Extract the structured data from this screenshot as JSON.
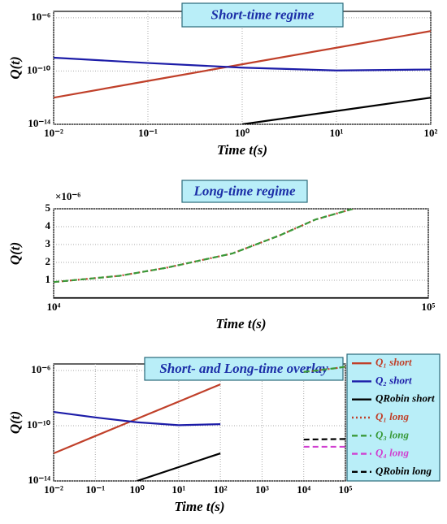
{
  "chart_data": [
    {
      "type": "line",
      "title": "Short-time regime",
      "xlabel": "Time t(s)",
      "ylabel": "Q(t)",
      "xscale": "log",
      "yscale": "log",
      "grid": true,
      "xlim": [
        0.01,
        100
      ],
      "ylim": [
        1e-14,
        3e-06
      ],
      "xticks": [
        {
          "value": 0.01,
          "label": "10⁻²"
        },
        {
          "value": 0.1,
          "label": "10⁻¹"
        },
        {
          "value": 1,
          "label": "10⁰"
        },
        {
          "value": 10,
          "label": "10¹"
        },
        {
          "value": 100,
          "label": "10²"
        }
      ],
      "yticks": [
        {
          "value": 1e-14,
          "label": "10⁻¹⁴"
        },
        {
          "value": 1e-10,
          "label": "10⁻¹⁰"
        },
        {
          "value": 1e-06,
          "label": "10⁻⁶"
        }
      ],
      "series": [
        {
          "color": "#c0402a",
          "dash": "solid",
          "x": [
            0.01,
            0.1,
            1,
            10,
            100
          ],
          "values": [
            1e-12,
            1.8e-11,
            3.2e-10,
            5.6e-09,
            1e-07
          ]
        },
        {
          "color": "#1c1ca8",
          "dash": "solid",
          "x": [
            0.01,
            0.1,
            1,
            10,
            100
          ],
          "values": [
            1e-09,
            4e-10,
            1.8e-10,
            1.1e-10,
            1.3e-10
          ]
        },
        {
          "color": "#000000",
          "dash": "solid",
          "x": [
            1,
            10,
            100
          ],
          "values": [
            1e-14,
            1e-13,
            1e-12
          ]
        }
      ]
    },
    {
      "type": "line",
      "title": "Long-time regime",
      "xlabel": "Time t(s)",
      "ylabel": "Q(t)",
      "y_offset_label": "×10⁻⁶",
      "xscale": "log",
      "yscale": "linear",
      "grid": true,
      "xlim": [
        10000,
        100000
      ],
      "ylim": [
        0,
        5
      ],
      "xticks": [
        {
          "value": 10000,
          "label": "10⁴"
        },
        {
          "value": 100000,
          "label": "10⁵"
        }
      ],
      "yticks": [
        1,
        2,
        3,
        4,
        5
      ],
      "series": [
        {
          "color": "#c0402a",
          "dash": "dotted",
          "x": [
            10000,
            15000,
            20000,
            30000,
            40000,
            50000,
            63000
          ],
          "values": [
            0.9,
            1.25,
            1.7,
            2.5,
            3.5,
            4.4,
            5
          ]
        },
        {
          "color": "#3a9a3a",
          "dash": "dashed",
          "x": [
            10000,
            15000,
            20000,
            30000,
            40000,
            50000,
            63000
          ],
          "values": [
            0.9,
            1.25,
            1.7,
            2.5,
            3.5,
            4.4,
            5
          ]
        },
        {
          "color": "#000000",
          "dash": "solid",
          "x": [
            10000,
            100000
          ],
          "values": [
            0,
            0
          ]
        }
      ]
    },
    {
      "type": "line",
      "title": "Short- and Long-time overlay",
      "xlabel": "Time t(s)",
      "ylabel": "Q(t)",
      "xscale": "log",
      "yscale": "log",
      "grid": true,
      "legend": "right",
      "xlim": [
        0.01,
        100000
      ],
      "ylim": [
        1e-14,
        3e-06
      ],
      "xticks": [
        {
          "value": 0.01,
          "label": "10⁻²"
        },
        {
          "value": 0.1,
          "label": "10⁻¹"
        },
        {
          "value": 1,
          "label": "10⁰"
        },
        {
          "value": 10,
          "label": "10¹"
        },
        {
          "value": 100,
          "label": "10²"
        },
        {
          "value": 1000,
          "label": "10³"
        },
        {
          "value": 10000,
          "label": "10⁴"
        },
        {
          "value": 100000,
          "label": "10⁵"
        }
      ],
      "yticks": [
        {
          "value": 1e-14,
          "label": "10⁻¹⁴"
        },
        {
          "value": 1e-10,
          "label": "10⁻¹⁰"
        },
        {
          "value": 1e-06,
          "label": "10⁻⁶"
        }
      ],
      "series": [
        {
          "name": "Q₁ short",
          "color": "#c0402a",
          "dash": "solid",
          "x": [
            0.01,
            0.1,
            1,
            10,
            100
          ],
          "values": [
            1e-12,
            1.8e-11,
            3.2e-10,
            5.6e-09,
            1e-07
          ]
        },
        {
          "name": "Q₂ short",
          "color": "#1c1ca8",
          "dash": "solid",
          "x": [
            0.01,
            0.1,
            1,
            10,
            100
          ],
          "values": [
            1e-09,
            4e-10,
            1.8e-10,
            1.1e-10,
            1.3e-10
          ]
        },
        {
          "name": "QRobin short",
          "color": "#000000",
          "dash": "solid",
          "x": [
            1,
            10,
            100
          ],
          "values": [
            1e-14,
            1e-13,
            1e-12
          ]
        },
        {
          "name": "Q₁ long",
          "color": "#c0402a",
          "dash": "dotted",
          "x": [
            10000,
            20000,
            40000,
            60000,
            100000
          ],
          "values": [
            8e-07,
            1e-06,
            1.3e-06,
            1.5e-06,
            1.9e-06
          ]
        },
        {
          "name": "Q₃ long",
          "color": "#3a9a3a",
          "dash": "dashed",
          "x": [
            10000,
            20000,
            40000,
            60000,
            100000
          ],
          "values": [
            8e-07,
            1e-06,
            1.3e-06,
            1.5e-06,
            1.9e-06
          ]
        },
        {
          "name": "Q₄ long",
          "color": "#d040d0",
          "dash": "dashed",
          "x": [
            10000,
            100000
          ],
          "values": [
            3e-12,
            3e-12
          ]
        },
        {
          "name": "QRobin long",
          "color": "#000000",
          "dash": "dashed",
          "x": [
            10000,
            100000
          ],
          "values": [
            1e-11,
            1.1e-11
          ]
        }
      ]
    }
  ]
}
